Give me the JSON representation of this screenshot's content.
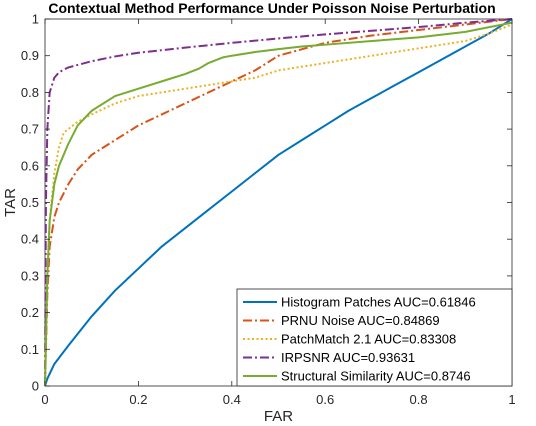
{
  "chart_data": {
    "type": "line",
    "title": "Contextual Method Performance Under Poisson Noise Perturbation",
    "xlabel": "FAR",
    "ylabel": "TAR",
    "xlim": [
      0,
      1
    ],
    "ylim": [
      0,
      1
    ],
    "xticks": [
      0,
      0.2,
      0.4,
      0.6,
      0.8,
      1
    ],
    "xtick_labels": [
      "0",
      "0.2",
      "0.4",
      "0.6",
      "0.8",
      "1"
    ],
    "yticks": [
      0,
      0.1,
      0.2,
      0.3,
      0.4,
      0.5,
      0.6,
      0.7,
      0.8,
      0.9,
      1
    ],
    "ytick_labels": [
      "0",
      "0.1",
      "0.2",
      "0.3",
      "0.4",
      "0.5",
      "0.6",
      "0.7",
      "0.8",
      "0.9",
      "1"
    ],
    "grid": false,
    "legend_position": "bottom-right",
    "series": [
      {
        "name": "Histogram Patches AUC=0.61846",
        "color": "#0072BD",
        "style": "solid",
        "x": [
          0,
          0.005,
          0.02,
          0.05,
          0.1,
          0.15,
          0.2,
          0.25,
          0.3,
          0.35,
          0.4,
          0.45,
          0.5,
          0.55,
          0.6,
          0.65,
          0.7,
          0.75,
          0.8,
          0.85,
          0.9,
          0.95,
          1.0
        ],
        "y": [
          0,
          0.02,
          0.06,
          0.11,
          0.19,
          0.26,
          0.32,
          0.38,
          0.43,
          0.48,
          0.53,
          0.58,
          0.63,
          0.67,
          0.71,
          0.75,
          0.785,
          0.82,
          0.855,
          0.89,
          0.925,
          0.96,
          1.0
        ]
      },
      {
        "name": "PRNU Noise AUC=0.84869",
        "color": "#D95319",
        "style": "dashdot",
        "x": [
          0,
          0.005,
          0.01,
          0.02,
          0.03,
          0.05,
          0.07,
          0.1,
          0.15,
          0.2,
          0.25,
          0.3,
          0.35,
          0.4,
          0.45,
          0.5,
          0.6,
          0.7,
          0.8,
          0.9,
          1.0
        ],
        "y": [
          0,
          0.25,
          0.38,
          0.46,
          0.5,
          0.55,
          0.59,
          0.63,
          0.67,
          0.71,
          0.74,
          0.77,
          0.8,
          0.83,
          0.86,
          0.9,
          0.935,
          0.955,
          0.97,
          0.985,
          1.0
        ]
      },
      {
        "name": "PatchMatch 2.1 AUC=0.83308",
        "color": "#EDB120",
        "style": "dotted",
        "x": [
          0,
          0.005,
          0.01,
          0.02,
          0.03,
          0.04,
          0.05,
          0.07,
          0.1,
          0.15,
          0.2,
          0.25,
          0.3,
          0.35,
          0.4,
          0.45,
          0.5,
          0.6,
          0.7,
          0.8,
          0.9,
          0.95,
          1.0
        ],
        "y": [
          0,
          0.3,
          0.45,
          0.58,
          0.65,
          0.69,
          0.7,
          0.72,
          0.74,
          0.77,
          0.79,
          0.8,
          0.81,
          0.82,
          0.83,
          0.84,
          0.86,
          0.88,
          0.9,
          0.92,
          0.94,
          0.96,
          0.985
        ]
      },
      {
        "name": "IRPSNR AUC=0.93631",
        "color": "#7E2F8E",
        "style": "dashdot",
        "x": [
          0,
          0.002,
          0.005,
          0.01,
          0.02,
          0.03,
          0.05,
          0.1,
          0.15,
          0.2,
          0.3,
          0.4,
          0.5,
          0.6,
          0.7,
          0.8,
          0.9,
          1.0
        ],
        "y": [
          0,
          0.5,
          0.7,
          0.8,
          0.84,
          0.855,
          0.868,
          0.885,
          0.898,
          0.908,
          0.922,
          0.935,
          0.947,
          0.958,
          0.968,
          0.978,
          0.99,
          1.0
        ]
      },
      {
        "name": "Structural Similarity AUC=0.8746",
        "color": "#77AC30",
        "style": "solid",
        "x": [
          0,
          0.005,
          0.01,
          0.02,
          0.03,
          0.05,
          0.07,
          0.1,
          0.15,
          0.2,
          0.25,
          0.3,
          0.33,
          0.35,
          0.38,
          0.4,
          0.45,
          0.5,
          0.55,
          0.6,
          0.7,
          0.8,
          0.9,
          1.0
        ],
        "y": [
          0,
          0.3,
          0.45,
          0.55,
          0.6,
          0.66,
          0.71,
          0.75,
          0.79,
          0.81,
          0.83,
          0.85,
          0.865,
          0.88,
          0.895,
          0.9,
          0.91,
          0.918,
          0.925,
          0.93,
          0.94,
          0.95,
          0.965,
          0.99
        ]
      }
    ]
  }
}
